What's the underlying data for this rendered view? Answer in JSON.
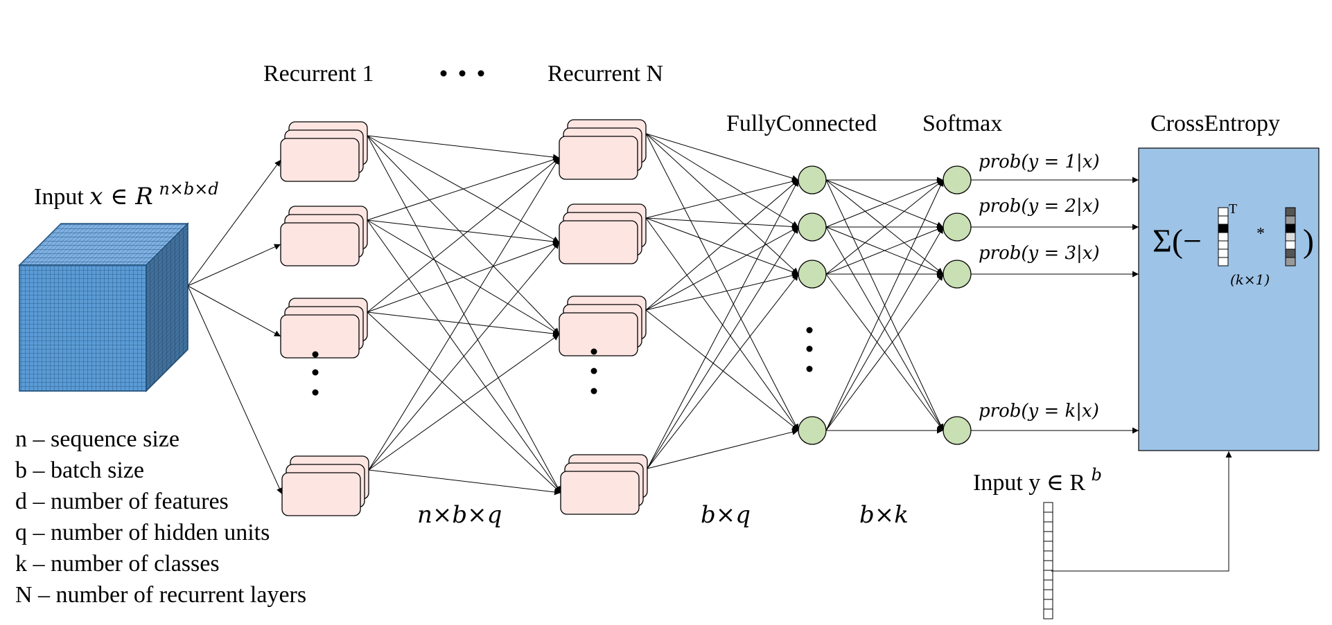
{
  "labels": {
    "input_x": "Input",
    "input_x_var": "x ∈ R",
    "input_x_sup": "n×b×d",
    "recurrent_1": "Recurrent 1",
    "recurrent_n": "Recurrent N",
    "fully_connected": "FullyConnected",
    "softmax": "Softmax",
    "cross_entropy": "CrossEntropy",
    "input_y": "Input y ∈ R",
    "input_y_sup": "b"
  },
  "dims": {
    "nbq": "n×b×q",
    "bq": "b×q",
    "bk": "b×k"
  },
  "probs": [
    "prob(y = 1|x)",
    "prob(y = 2|x)",
    "prob(y = 3|x)",
    "prob(y = k|x)"
  ],
  "formula": {
    "sigma": "Σ(−",
    "transpose": "T",
    "star": "*",
    "close": ")",
    "dim": "(k×1)"
  },
  "legend": [
    "n – sequence size",
    "b – batch size",
    "d – number of features",
    "q – number of hidden units",
    "k – number of classes",
    "N – number of recurrent layers"
  ],
  "colors": {
    "cube_front": "#5b9bd5",
    "cube_side": "#41719c",
    "cube_top": "#7fb1e3",
    "rnn_cell": "#fde5e2",
    "neuron": "#c9dfb4",
    "crossentropy_box": "#9dc3e6"
  }
}
